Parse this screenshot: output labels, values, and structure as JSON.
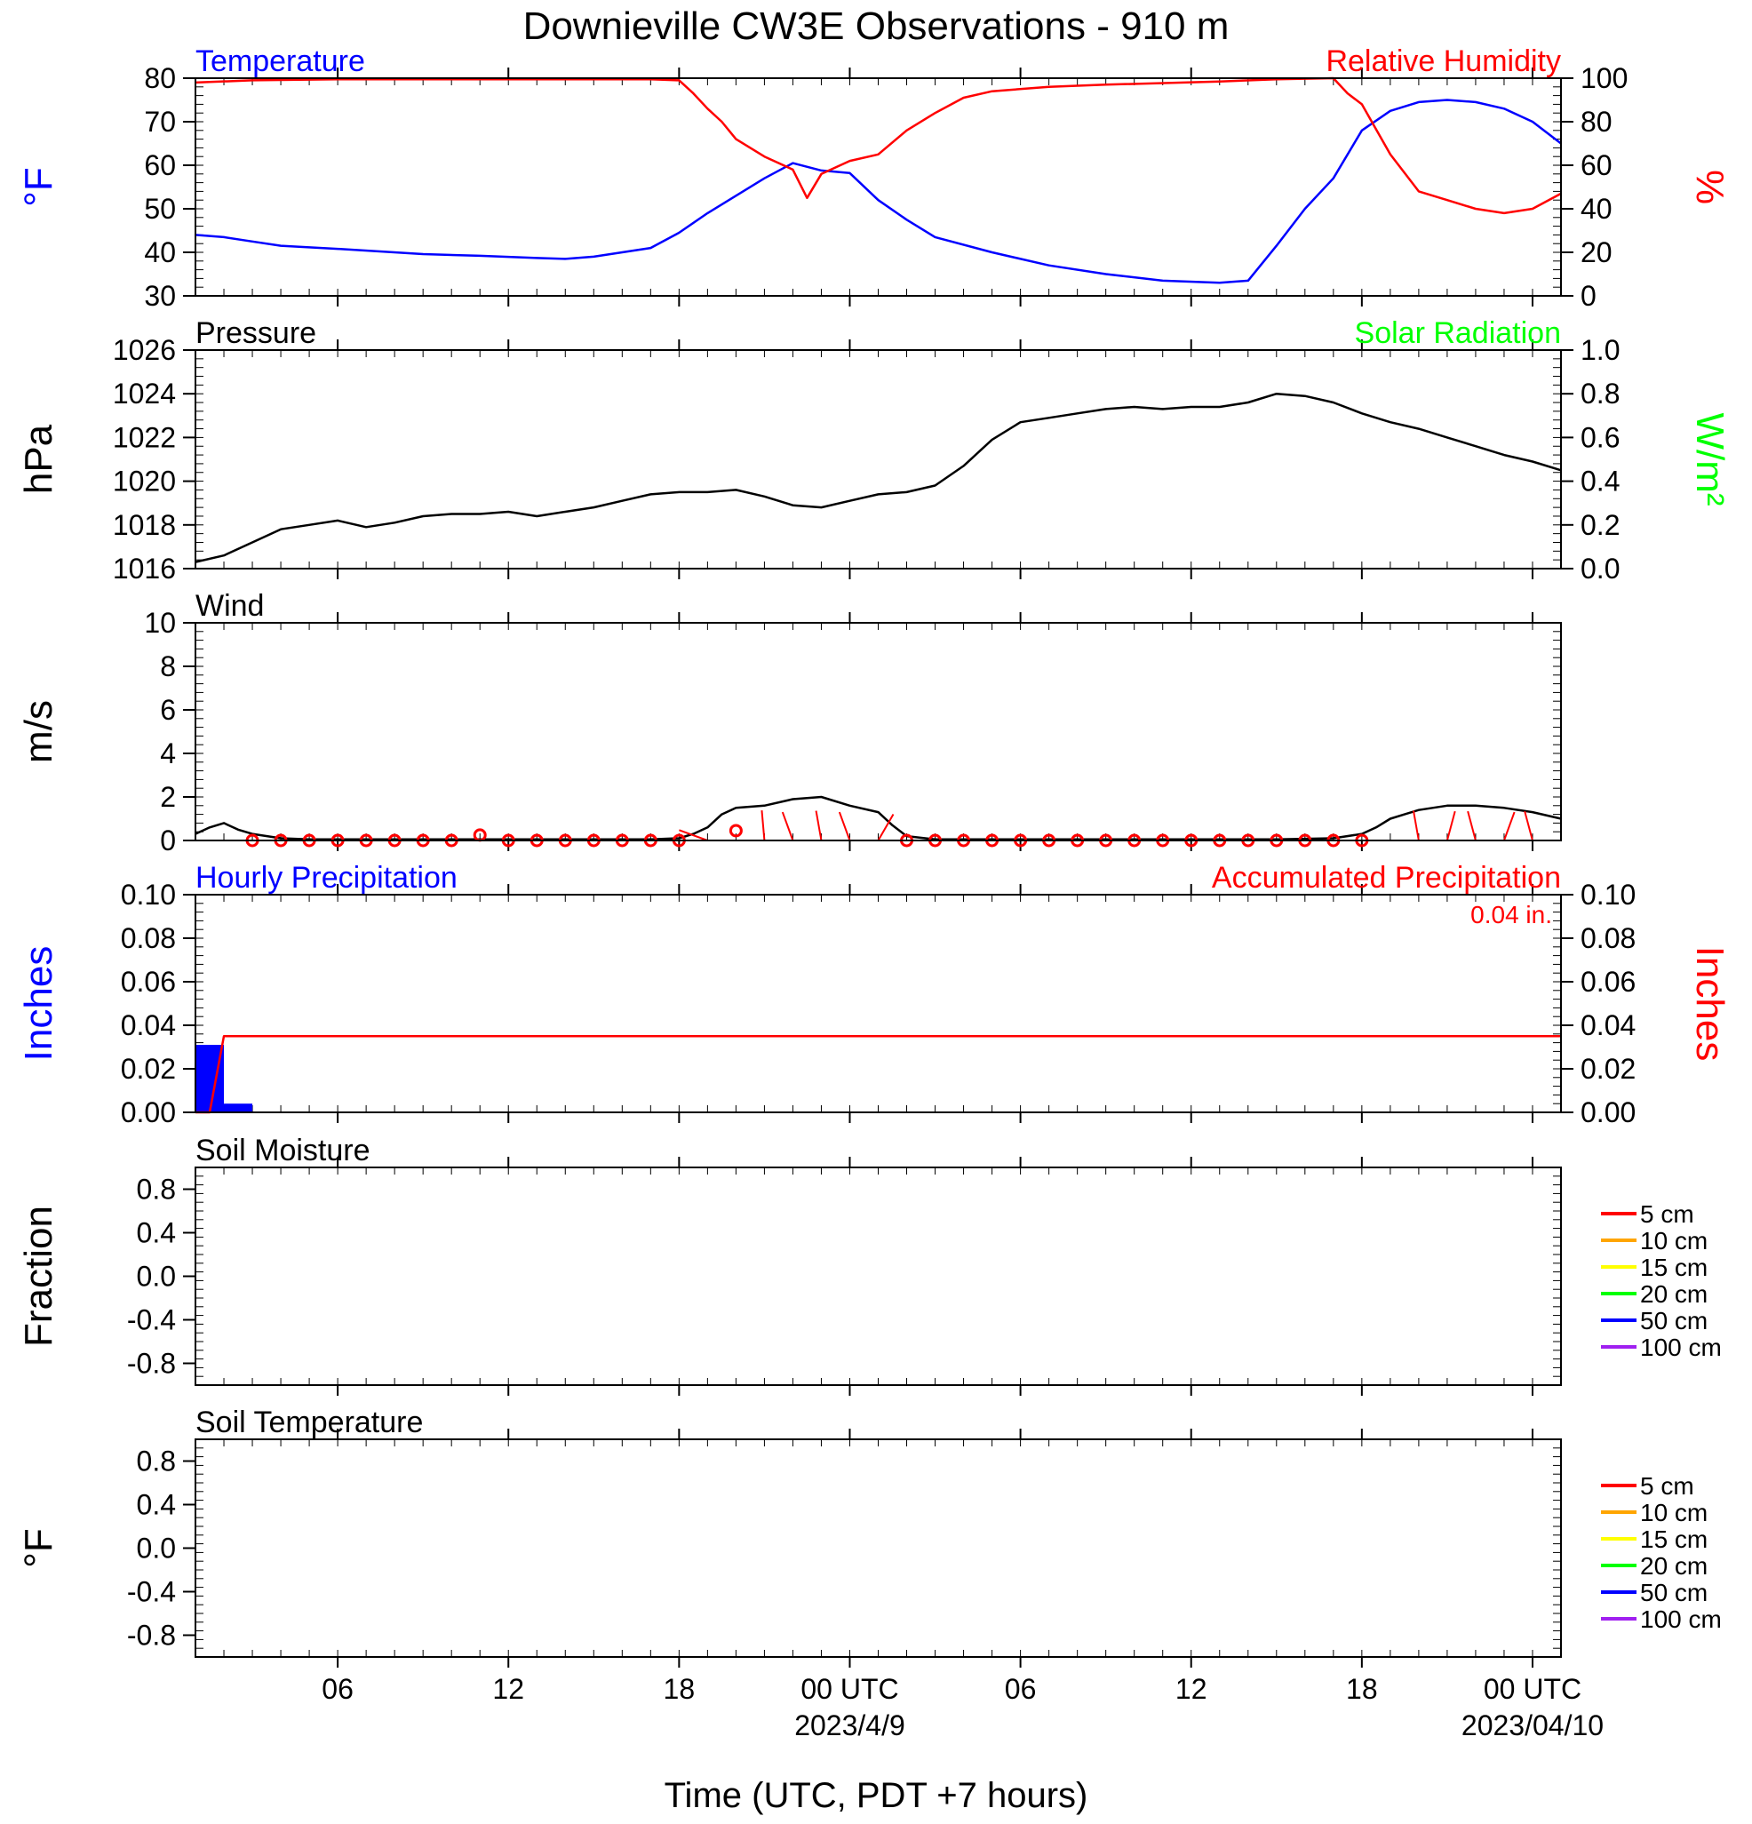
{
  "title": "Downieville CW3E Observations - 910 m",
  "xaxis": {
    "title": "Time (UTC, PDT +7 hours)",
    "range_hours": [
      0,
      48
    ],
    "ticks": [
      {
        "h": 5,
        "label": "06"
      },
      {
        "h": 11,
        "label": "12"
      },
      {
        "h": 17,
        "label": "18"
      },
      {
        "h": 23,
        "label": "00 UTC",
        "date": "2023/4/9"
      },
      {
        "h": 29,
        "label": "06"
      },
      {
        "h": 35,
        "label": "12"
      },
      {
        "h": 41,
        "label": "18"
      },
      {
        "h": 47,
        "label": "00 UTC",
        "date": "2023/04/10"
      }
    ]
  },
  "chart_data": [
    {
      "type": "line",
      "panel": "temperature-humidity",
      "left_title": "Temperature",
      "right_title": "Relative Humidity",
      "ylabel_left": "°F",
      "ylabel_right": "%",
      "ylim_left": [
        30,
        80
      ],
      "yticks_left": [
        30,
        40,
        50,
        60,
        70,
        80
      ],
      "ylim_right": [
        0,
        100
      ],
      "yticks_right": [
        0,
        20,
        40,
        60,
        80,
        100
      ],
      "colors": {
        "left": "#0000ff",
        "right": "#ff0000"
      },
      "series": [
        {
          "name": "Temperature",
          "axis": "left",
          "color": "#0000ff",
          "x": [
            0,
            1,
            2,
            3,
            5,
            8,
            10,
            12,
            13,
            14,
            15,
            16,
            17,
            18,
            19,
            20,
            21,
            22,
            23,
            24,
            25,
            26,
            28,
            30,
            32,
            34,
            36,
            37,
            38,
            39,
            40,
            41,
            42,
            43,
            44,
            45,
            46,
            47,
            48
          ],
          "y": [
            44,
            43.5,
            42.5,
            41.5,
            40.8,
            39.6,
            39.2,
            38.7,
            38.5,
            39,
            40,
            41,
            44.5,
            49,
            53,
            57,
            60.5,
            58.8,
            58.2,
            52,
            47.5,
            43.5,
            40,
            37,
            35,
            33.5,
            33,
            33.5,
            41.5,
            50,
            57,
            68,
            72.5,
            74.5,
            75,
            74.5,
            73,
            70,
            65
          ]
        },
        {
          "name": "Relative Humidity",
          "axis": "right",
          "color": "#ff0000",
          "x": [
            0,
            2,
            5,
            10,
            15,
            16,
            17,
            17.5,
            18,
            18.5,
            19,
            20,
            21,
            21.5,
            22,
            23,
            24,
            25,
            26,
            27,
            28,
            30,
            32,
            36,
            38,
            40,
            40.5,
            41,
            42,
            43,
            44,
            45,
            46,
            47,
            48
          ],
          "y": [
            98,
            99,
            99.5,
            99.5,
            99.5,
            99.5,
            99,
            93,
            86,
            80,
            72,
            64,
            58,
            45,
            56,
            62,
            65,
            76,
            84,
            91,
            94,
            96,
            97,
            98.5,
            99.5,
            100,
            93,
            88,
            65,
            48,
            44,
            40,
            38,
            40,
            47
          ]
        }
      ]
    },
    {
      "type": "line",
      "panel": "pressure-solar",
      "left_title": "Pressure",
      "right_title": "Solar Radiation",
      "ylabel_left": "hPa",
      "ylabel_right": "W/m²",
      "ylim_left": [
        1016,
        1026
      ],
      "yticks_left": [
        1016,
        1018,
        1020,
        1022,
        1024,
        1026
      ],
      "ylim_right": [
        0.0,
        1.0
      ],
      "yticks_right": [
        "0.0",
        "0.2",
        "0.4",
        "0.6",
        "0.8",
        "1.0"
      ],
      "colors": {
        "left": "#000000",
        "right": "#00ff00"
      },
      "series": [
        {
          "name": "Pressure",
          "axis": "left",
          "color": "#000000",
          "x": [
            0,
            1,
            2,
            3,
            4,
            5,
            6,
            7,
            8,
            9,
            10,
            11,
            12,
            13,
            14,
            15,
            16,
            17,
            18,
            19,
            20,
            21,
            22,
            23,
            24,
            25,
            26,
            27,
            28,
            29,
            30,
            31,
            32,
            33,
            34,
            35,
            36,
            37,
            38,
            39,
            40,
            41,
            42,
            43,
            44,
            45,
            46,
            47,
            48
          ],
          "y": [
            1016.3,
            1016.6,
            1017.2,
            1017.8,
            1018.0,
            1018.2,
            1017.9,
            1018.1,
            1018.4,
            1018.5,
            1018.5,
            1018.6,
            1018.4,
            1018.6,
            1018.8,
            1019.1,
            1019.4,
            1019.5,
            1019.5,
            1019.6,
            1019.3,
            1018.9,
            1018.8,
            1019.1,
            1019.4,
            1019.5,
            1019.8,
            1020.7,
            1021.9,
            1022.7,
            1022.9,
            1023.1,
            1023.3,
            1023.4,
            1023.3,
            1023.4,
            1023.4,
            1023.6,
            1024.0,
            1023.9,
            1023.6,
            1023.1,
            1022.7,
            1022.4,
            1022.0,
            1021.6,
            1021.2,
            1020.9,
            1020.5
          ]
        }
      ]
    },
    {
      "type": "line",
      "panel": "wind",
      "left_title": "Wind",
      "ylabel_left": "m/s",
      "ylim_left": [
        0,
        10
      ],
      "yticks_left": [
        0,
        2,
        4,
        6,
        8,
        10
      ],
      "series": [
        {
          "name": "Wind",
          "axis": "left",
          "color": "#000000",
          "x": [
            0,
            0.5,
            1,
            1.5,
            2,
            3,
            4,
            6,
            8,
            10,
            12,
            14,
            16,
            17,
            17.5,
            18,
            18.5,
            19,
            20,
            21,
            22,
            23,
            24,
            24.5,
            25,
            26,
            30,
            34,
            38,
            40,
            41,
            41.5,
            42,
            42.5,
            43,
            44,
            45,
            46,
            47,
            48
          ],
          "y": [
            0.3,
            0.6,
            0.8,
            0.5,
            0.3,
            0.1,
            0.05,
            0.05,
            0.05,
            0.05,
            0.05,
            0.05,
            0.05,
            0.1,
            0.3,
            0.6,
            1.2,
            1.5,
            1.6,
            1.9,
            2.0,
            1.6,
            1.3,
            0.7,
            0.2,
            0.05,
            0.05,
            0.05,
            0.05,
            0.1,
            0.3,
            0.6,
            1.0,
            1.2,
            1.4,
            1.6,
            1.6,
            1.5,
            1.3,
            1.0
          ]
        }
      ],
      "calm_markers_hours": [
        2,
        3,
        4,
        5,
        6,
        7,
        8,
        9,
        11,
        12,
        13,
        14,
        15,
        16,
        17,
        25,
        26,
        27,
        28,
        29,
        30,
        31,
        32,
        33,
        34,
        35,
        36,
        37,
        38,
        39,
        40,
        41
      ],
      "calm_marker_raised": [
        {
          "h": 10,
          "y": 0.25
        },
        {
          "h": 19,
          "y": 0.45
        }
      ],
      "barbs": [
        {
          "h": 18,
          "dir_deg": 290
        },
        {
          "h": 20,
          "dir_deg": 355
        },
        {
          "h": 21,
          "dir_deg": 340
        },
        {
          "h": 22,
          "dir_deg": 350
        },
        {
          "h": 23,
          "dir_deg": 340
        },
        {
          "h": 24,
          "dir_deg": 30
        },
        {
          "h": 42,
          "dir_deg": 270
        },
        {
          "h": 43,
          "dir_deg": 350
        },
        {
          "h": 44,
          "dir_deg": 15
        },
        {
          "h": 45,
          "dir_deg": 345
        },
        {
          "h": 46,
          "dir_deg": 20
        },
        {
          "h": 47,
          "dir_deg": 345
        }
      ]
    },
    {
      "type": "bar",
      "panel": "precipitation",
      "left_title": "Hourly Precipitation",
      "right_title": "Accumulated Precipitation",
      "annotation": "0.04 in.",
      "ylabel_left": "Inches",
      "ylabel_right": "Inches",
      "ylim_left": [
        0,
        0.1
      ],
      "yticks_left": [
        "0.00",
        "0.02",
        "0.04",
        "0.06",
        "0.08",
        "0.10"
      ],
      "ylim_right": [
        0,
        0.1
      ],
      "yticks_right": [
        "0.00",
        "0.02",
        "0.04",
        "0.06",
        "0.08",
        "0.10"
      ],
      "colors": {
        "left": "#0000ff",
        "right": "#ff0000"
      },
      "bars": [
        {
          "start_h": 0,
          "end_h": 1,
          "value": 0.031
        },
        {
          "start_h": 1,
          "end_h": 2,
          "value": 0.004
        }
      ],
      "accumulated": {
        "color": "#ff0000",
        "x": [
          0,
          0.5,
          1.0,
          48
        ],
        "y": [
          0,
          0,
          0.035,
          0.035
        ]
      }
    },
    {
      "type": "line",
      "panel": "soil-moisture",
      "left_title": "Soil Moisture",
      "ylabel_left": "Fraction",
      "ylim_left": [
        -1.0,
        1.0
      ],
      "yticks_left": [
        "-0.8",
        "-0.4",
        "0.0",
        "0.4",
        "0.8"
      ],
      "series": []
    },
    {
      "type": "line",
      "panel": "soil-temperature",
      "left_title": "Soil Temperature",
      "ylabel_left": "°F",
      "ylim_left": [
        -1.0,
        1.0
      ],
      "yticks_left": [
        "-0.8",
        "-0.4",
        "0.0",
        "0.4",
        "0.8"
      ],
      "series": []
    }
  ],
  "soil_legend": [
    {
      "label": "5 cm",
      "color": "#ff0000"
    },
    {
      "label": "10 cm",
      "color": "#ffa500"
    },
    {
      "label": "15 cm",
      "color": "#ffff00"
    },
    {
      "label": "20 cm",
      "color": "#00ff00"
    },
    {
      "label": "50 cm",
      "color": "#0000ff"
    },
    {
      "label": "100 cm",
      "color": "#a020f0"
    }
  ]
}
